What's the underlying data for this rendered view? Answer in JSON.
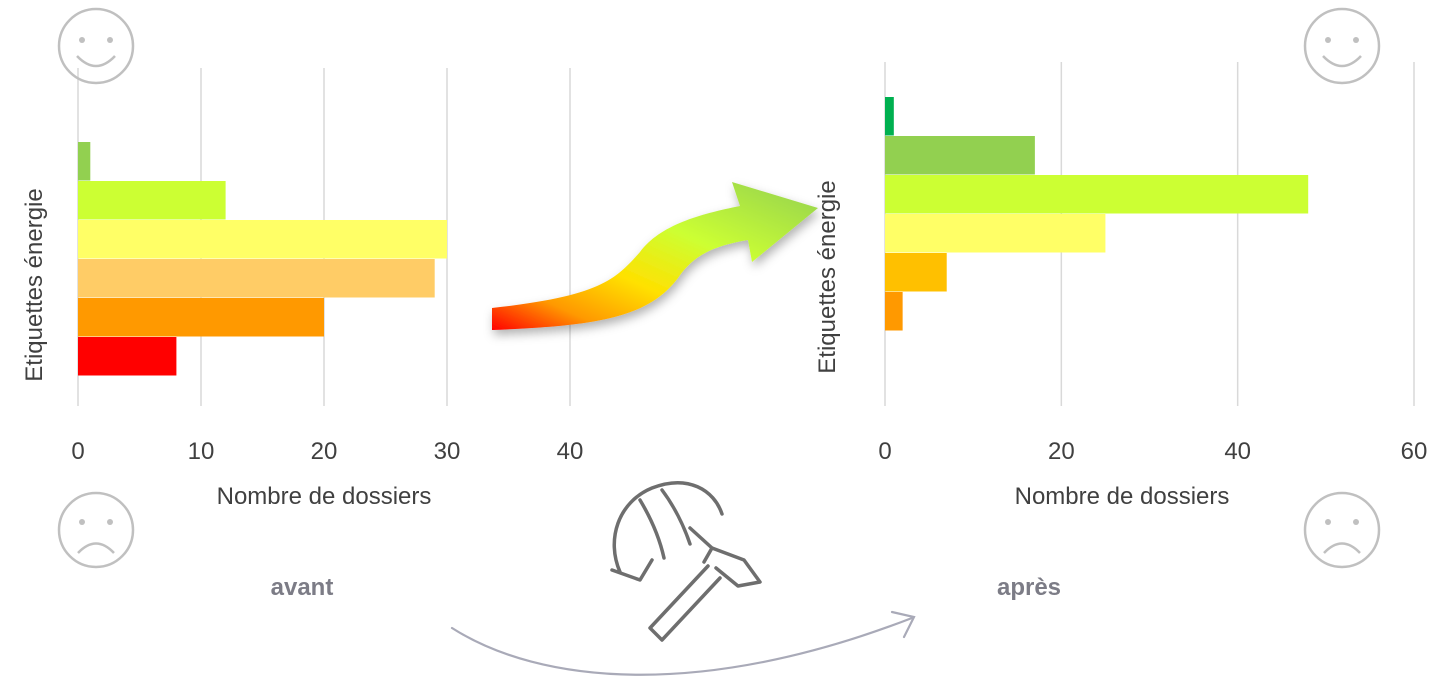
{
  "labels": {
    "before": "avant",
    "after": "après"
  },
  "chart_data": [
    {
      "type": "bar",
      "orientation": "horizontal",
      "xlabel": "Nombre de dossiers",
      "ylabel": "Etiquettes énergie",
      "xlim": [
        0,
        40
      ],
      "xticks": [
        "0",
        "10",
        "20",
        "30",
        "40"
      ],
      "grid": true,
      "values": [
        1,
        12,
        30,
        29,
        20,
        8
      ],
      "colors": [
        "#92d050",
        "#ccff33",
        "#ffff66",
        "#ffcc66",
        "#ff9900",
        "#ff0000"
      ]
    },
    {
      "type": "bar",
      "orientation": "horizontal",
      "xlabel": "Nombre de dossiers",
      "ylabel": "Etiquettes énergie",
      "xlim": [
        0,
        60
      ],
      "xticks": [
        "0",
        "20",
        "40",
        "60"
      ],
      "grid": true,
      "values": [
        1,
        17,
        48,
        25,
        7,
        2
      ],
      "colors": [
        "#00b050",
        "#92d050",
        "#ccff33",
        "#ffff66",
        "#ffc000",
        "#ff9900"
      ]
    }
  ],
  "icons": {
    "happy": "smiley-face-icon",
    "sad": "sad-face-icon",
    "renovation": "helmet-hammer-icon",
    "progress_arrow": "curved-arrow-icon"
  }
}
